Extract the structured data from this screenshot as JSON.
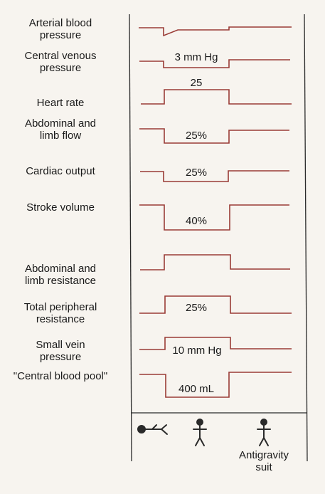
{
  "colors": {
    "trace": "#9a3b36",
    "axis": "#2a2a2a",
    "background": "#f7f4ef"
  },
  "rows": [
    {
      "label": "Arterial blood\npressure",
      "value": ""
    },
    {
      "label": "Central venous\npressure",
      "value": "3 mm Hg"
    },
    {
      "label": "Heart rate",
      "value": "25"
    },
    {
      "label": "Abdominal and\nlimb flow",
      "value": "25%"
    },
    {
      "label": "Cardiac output",
      "value": "25%"
    },
    {
      "label": "Stroke volume",
      "value": "40%"
    },
    {
      "label": "Abdominal and\nlimb resistance",
      "value": ""
    },
    {
      "label": "Total peripheral\nresistance",
      "value": "25%"
    },
    {
      "label": "Small vein\npressure",
      "value": "10 mm Hg"
    },
    {
      "label": "\"Central blood pool\"",
      "value": "400 mL"
    }
  ],
  "postures": [
    {
      "icon": "supine-figure-icon",
      "caption": ""
    },
    {
      "icon": "standing-figure-icon",
      "caption": ""
    },
    {
      "icon": "standing-figure-icon",
      "caption": "Antigravity\nsuit"
    }
  ]
}
